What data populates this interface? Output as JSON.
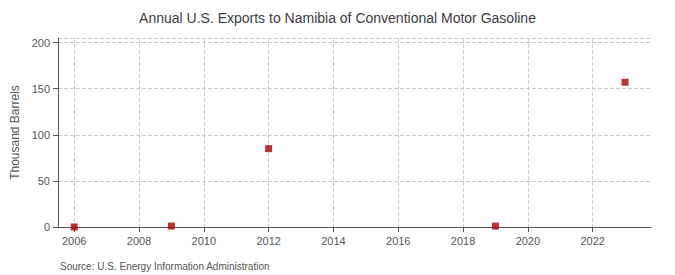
{
  "chart_data": {
    "type": "scatter",
    "title": "Annual U.S. Exports to Namibia of Conventional Motor Gasoline",
    "ylabel": "Thousand Barrels",
    "annotations": [
      "Source: U.S. Energy Information Administration"
    ],
    "x": [
      2006,
      2009,
      2012,
      2019,
      2023
    ],
    "values": [
      0,
      1,
      85,
      1,
      157
    ],
    "color": "#aa0000",
    "marker": "square",
    "xlim": [
      2005.5,
      2023.8
    ],
    "xticks": [
      2006,
      2008,
      2010,
      2012,
      2014,
      2016,
      2018,
      2020,
      2022
    ],
    "ylim": [
      0,
      205
    ],
    "yticks": [
      0,
      50,
      100,
      150,
      200
    ],
    "grid": true
  }
}
